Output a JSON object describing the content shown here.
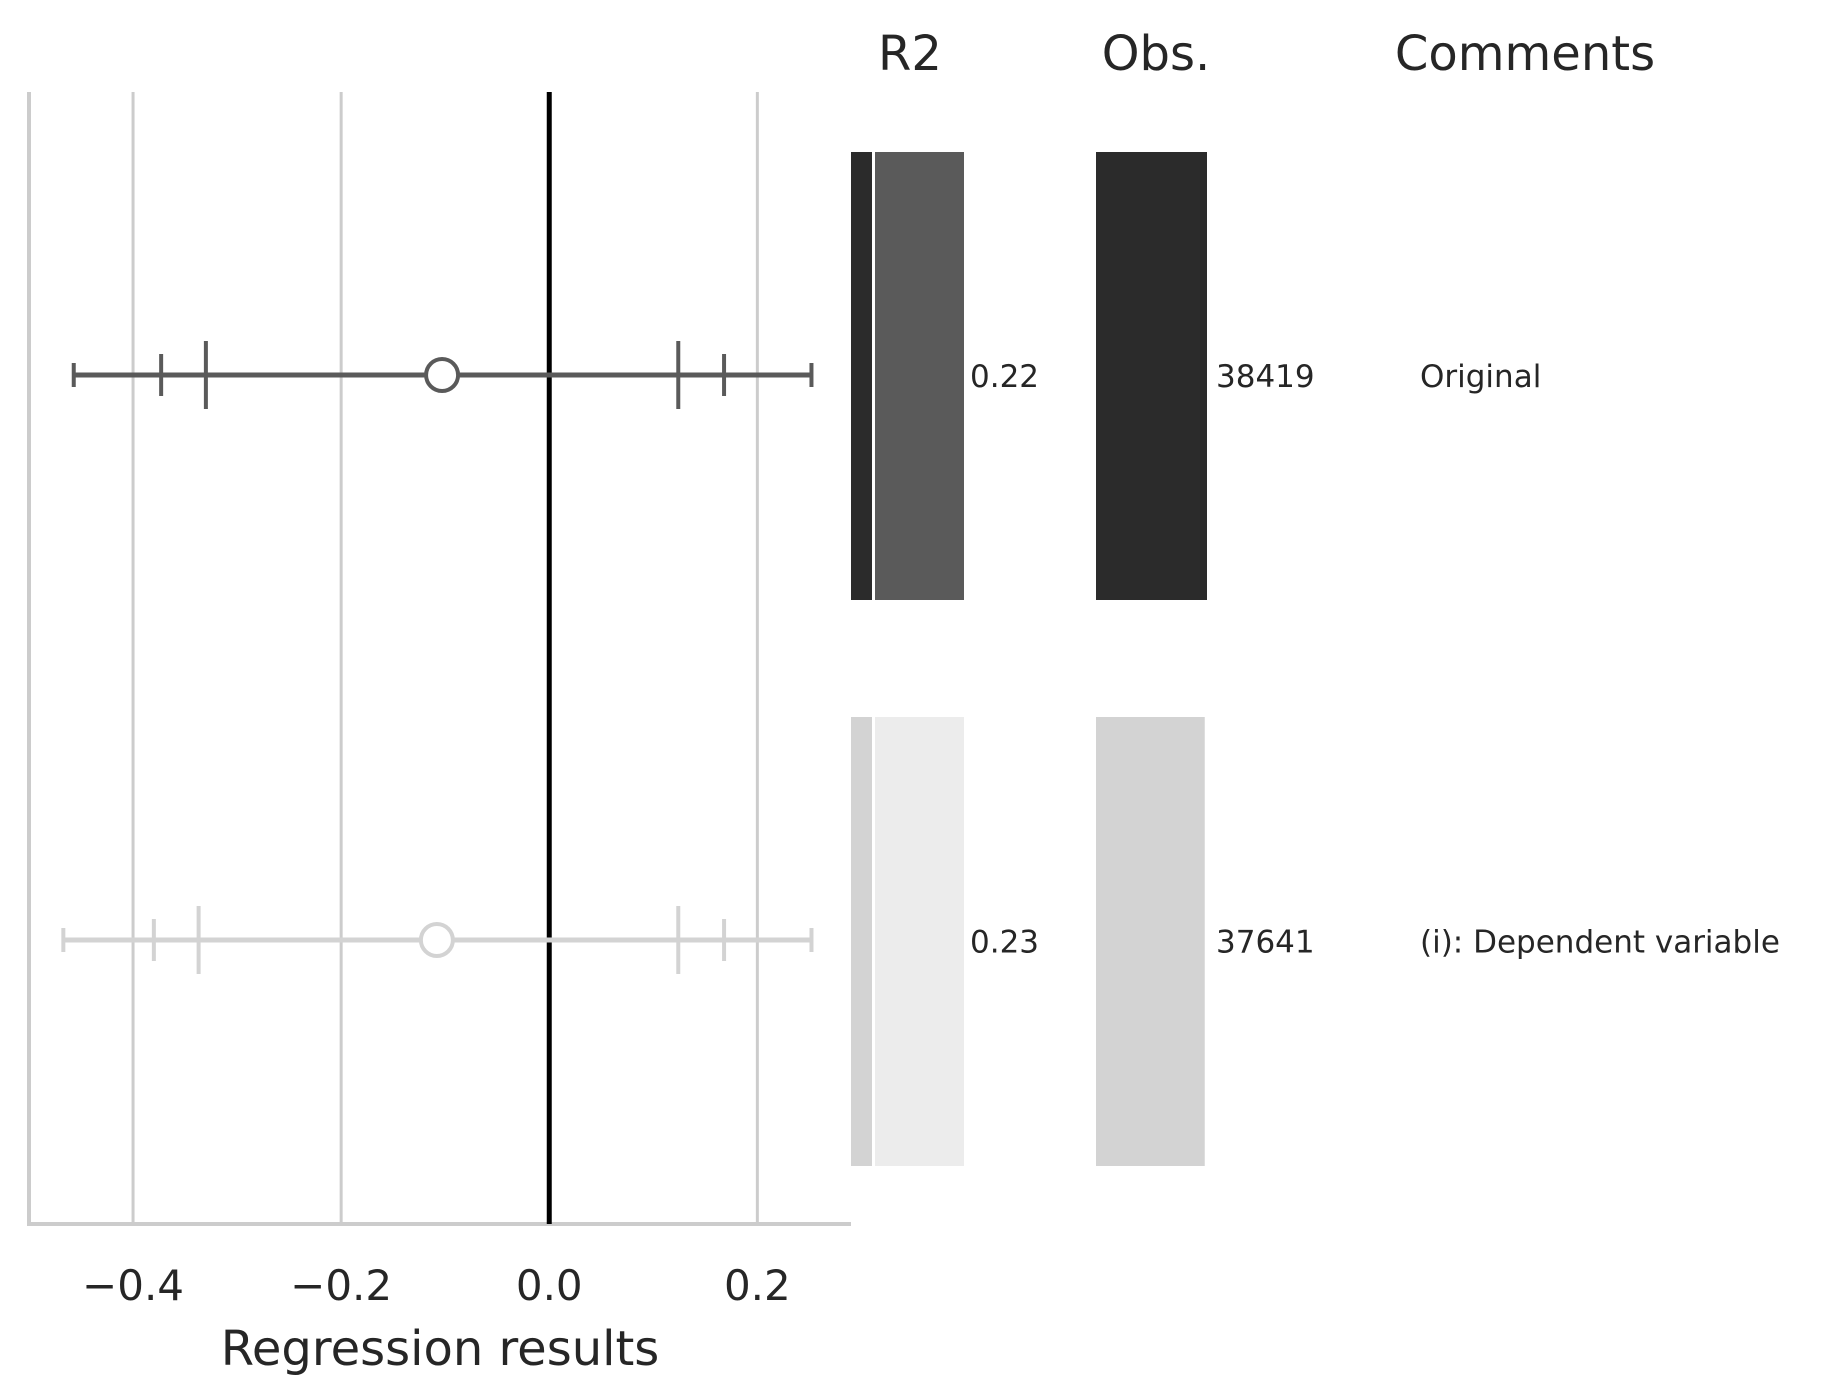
{
  "chart_data": {
    "type": "forest",
    "xlabel": "Regression results",
    "xlim": [
      -0.5,
      0.29
    ],
    "xticks": [
      -0.4,
      -0.2,
      0.0,
      0.2
    ],
    "xtick_labels": [
      "−0.4",
      "−0.2",
      "0.0",
      "0.2"
    ],
    "reference_line": 0.0,
    "grid": "vertical",
    "columns": {
      "r2": "R2",
      "obs": "Obs.",
      "comments": "Comments"
    },
    "rows": [
      {
        "estimate": -0.103,
        "ci_inner": [
          -0.33,
          0.124
        ],
        "ci_mid": [
          -0.373,
          0.168
        ],
        "ci_outer": [
          -0.457,
          0.252
        ],
        "r2": 0.22,
        "r2_label": "0.22",
        "obs": 38419,
        "obs_label": "38419",
        "comment": "Original",
        "color": "#5a5a5a",
        "color_dark": "#2b2b2b"
      },
      {
        "estimate": -0.108,
        "ci_inner": [
          -0.337,
          0.124
        ],
        "ci_mid": [
          -0.38,
          0.168
        ],
        "ci_outer": [
          -0.467,
          0.252
        ],
        "r2": 0.23,
        "r2_label": "0.23",
        "obs": 37641,
        "obs_label": "37641",
        "comment": "(i): Dependent variable",
        "color": "#d3d3d3",
        "color_dark": "#d3d3d3",
        "color_light": "#ececec"
      }
    ]
  }
}
